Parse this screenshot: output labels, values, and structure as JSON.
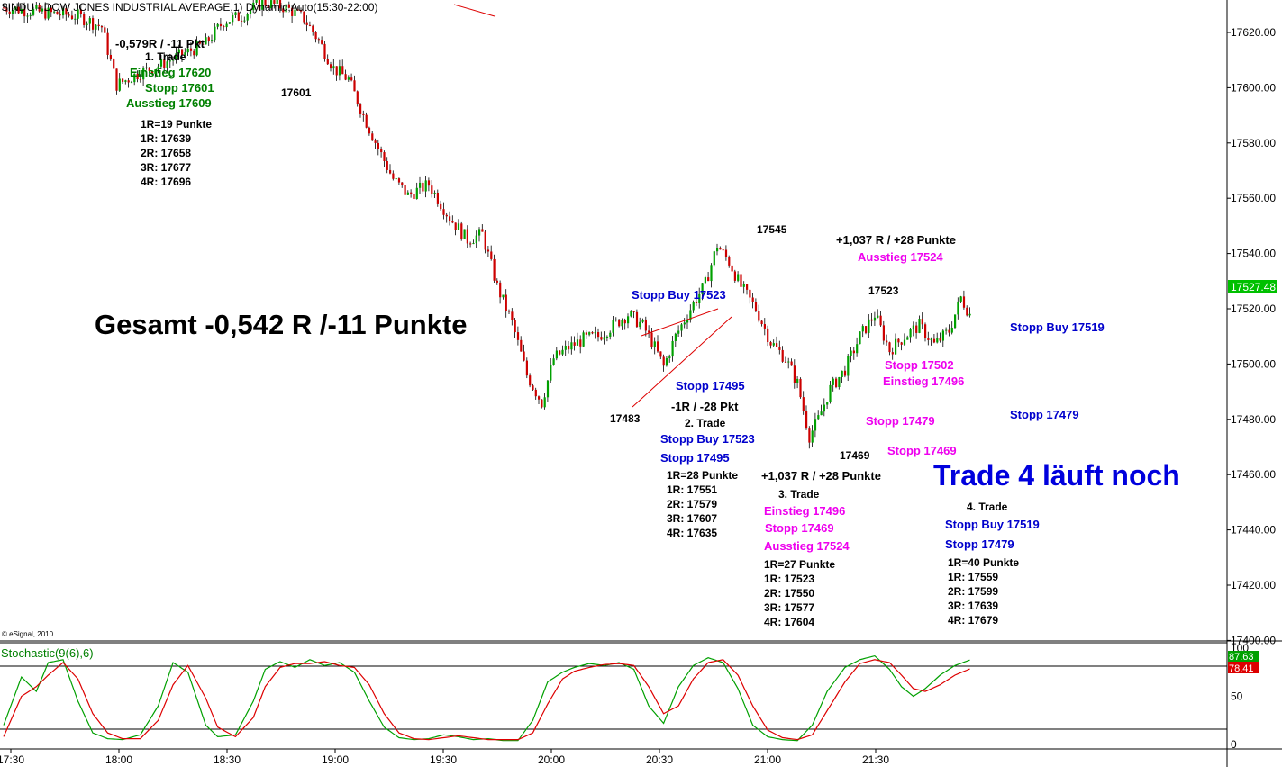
{
  "title": "$INDU - DOW JONES INDUSTRIAL AVERAGE,1) Dynamic,Auto(15:30-22:00)",
  "copyright": "© eSignal, 2010",
  "stochastic_label": "Stochastic(9(6),6)",
  "colors": {
    "up_candle": "#00a000",
    "down_candle": "#cc0000",
    "stoch_k": "#00a000",
    "stoch_d": "#dd0000",
    "last_price_bg": "#00c000",
    "trendline": "#dd0000"
  },
  "chart_data": {
    "type": "candlestick",
    "price_axis": {
      "ticks": [
        "17620.00",
        "17600.00",
        "17580.00",
        "17560.00",
        "17540.00",
        "17520.00",
        "17500.00",
        "17480.00",
        "17460.00",
        "17440.00",
        "17420.00",
        "17400.00"
      ],
      "tick_values": [
        17620,
        17600,
        17580,
        17560,
        17540,
        17520,
        17500,
        17480,
        17460,
        17440,
        17420,
        17400
      ],
      "last_price": "17527.48"
    },
    "time_axis": {
      "labels": [
        "17:30",
        "18:00",
        "18:30",
        "19:00",
        "19:30",
        "20:00",
        "20:30",
        "21:00",
        "21:30"
      ]
    },
    "stochastic_axis": {
      "ticks": [
        "100",
        "50",
        "0"
      ],
      "tick_values": [
        100,
        50,
        0
      ],
      "k_value": "87.63",
      "d_value": "78.41",
      "overbought": 80,
      "oversold": 20
    },
    "price_path": [
      [
        0,
        17629
      ],
      [
        15,
        17627
      ],
      [
        25,
        17626
      ],
      [
        33,
        17622
      ],
      [
        38,
        17601
      ],
      [
        45,
        17605
      ],
      [
        52,
        17608
      ],
      [
        60,
        17612
      ],
      [
        68,
        17616
      ],
      [
        74,
        17624
      ],
      [
        80,
        17626
      ],
      [
        87,
        17631
      ],
      [
        95,
        17629
      ],
      [
        101,
        17625
      ],
      [
        106,
        17617
      ],
      [
        111,
        17607
      ],
      [
        116,
        17603
      ],
      [
        121,
        17590
      ],
      [
        126,
        17578
      ],
      [
        131,
        17567
      ],
      [
        136,
        17561
      ],
      [
        143,
        17565
      ],
      [
        150,
        17553
      ],
      [
        156,
        17545
      ],
      [
        161,
        17547
      ],
      [
        166,
        17528
      ],
      [
        171,
        17515
      ],
      [
        176,
        17496
      ],
      [
        181,
        17486
      ],
      [
        185,
        17502
      ],
      [
        190,
        17506
      ],
      [
        195,
        17509
      ],
      [
        200,
        17510
      ],
      [
        205,
        17514
      ],
      [
        210,
        17518
      ],
      [
        215,
        17514
      ],
      [
        219,
        17506
      ],
      [
        222,
        17499
      ],
      [
        226,
        17510
      ],
      [
        231,
        17520
      ],
      [
        236,
        17529
      ],
      [
        240,
        17543
      ],
      [
        244,
        17537
      ],
      [
        248,
        17528
      ],
      [
        253,
        17520
      ],
      [
        258,
        17508
      ],
      [
        263,
        17502
      ],
      [
        267,
        17493
      ],
      [
        271,
        17474
      ],
      [
        274,
        17480
      ],
      [
        278,
        17491
      ],
      [
        283,
        17498
      ],
      [
        288,
        17510
      ],
      [
        293,
        17518
      ],
      [
        298,
        17505
      ],
      [
        303,
        17510
      ],
      [
        308,
        17514
      ],
      [
        313,
        17507
      ],
      [
        318,
        17512
      ],
      [
        322,
        17524
      ],
      [
        325,
        17518
      ]
    ],
    "stoch_k": [
      [
        0,
        20
      ],
      [
        6,
        70
      ],
      [
        11,
        55
      ],
      [
        15,
        85
      ],
      [
        20,
        88
      ],
      [
        25,
        45
      ],
      [
        30,
        12
      ],
      [
        35,
        6
      ],
      [
        40,
        5
      ],
      [
        46,
        10
      ],
      [
        52,
        40
      ],
      [
        57,
        85
      ],
      [
        62,
        75
      ],
      [
        68,
        20
      ],
      [
        72,
        8
      ],
      [
        78,
        10
      ],
      [
        84,
        45
      ],
      [
        88,
        78
      ],
      [
        93,
        86
      ],
      [
        98,
        80
      ],
      [
        103,
        88
      ],
      [
        108,
        82
      ],
      [
        113,
        85
      ],
      [
        118,
        75
      ],
      [
        123,
        45
      ],
      [
        128,
        18
      ],
      [
        133,
        7
      ],
      [
        138,
        5
      ],
      [
        143,
        6
      ],
      [
        148,
        10
      ],
      [
        153,
        8
      ],
      [
        158,
        5
      ],
      [
        163,
        6
      ],
      [
        168,
        4
      ],
      [
        173,
        4
      ],
      [
        178,
        25
      ],
      [
        183,
        65
      ],
      [
        188,
        75
      ],
      [
        192,
        80
      ],
      [
        197,
        84
      ],
      [
        202,
        82
      ],
      [
        207,
        85
      ],
      [
        212,
        78
      ],
      [
        217,
        40
      ],
      [
        222,
        22
      ],
      [
        227,
        60
      ],
      [
        232,
        82
      ],
      [
        237,
        90
      ],
      [
        242,
        85
      ],
      [
        247,
        58
      ],
      [
        252,
        20
      ],
      [
        257,
        8
      ],
      [
        262,
        5
      ],
      [
        267,
        4
      ],
      [
        272,
        20
      ],
      [
        277,
        55
      ],
      [
        283,
        80
      ],
      [
        288,
        88
      ],
      [
        293,
        92
      ],
      [
        298,
        78
      ],
      [
        302,
        60
      ],
      [
        306,
        50
      ],
      [
        310,
        58
      ],
      [
        315,
        72
      ],
      [
        320,
        82
      ],
      [
        325,
        87.63
      ]
    ],
    "stoch_d": [
      [
        0,
        8
      ],
      [
        6,
        50
      ],
      [
        11,
        60
      ],
      [
        15,
        72
      ],
      [
        20,
        85
      ],
      [
        25,
        68
      ],
      [
        30,
        32
      ],
      [
        35,
        12
      ],
      [
        40,
        6
      ],
      [
        46,
        6
      ],
      [
        52,
        25
      ],
      [
        57,
        62
      ],
      [
        62,
        82
      ],
      [
        68,
        48
      ],
      [
        72,
        18
      ],
      [
        78,
        8
      ],
      [
        84,
        28
      ],
      [
        88,
        60
      ],
      [
        93,
        80
      ],
      [
        98,
        84
      ],
      [
        103,
        84
      ],
      [
        108,
        86
      ],
      [
        113,
        82
      ],
      [
        118,
        80
      ],
      [
        123,
        62
      ],
      [
        128,
        32
      ],
      [
        133,
        12
      ],
      [
        138,
        6
      ],
      [
        143,
        5
      ],
      [
        148,
        7
      ],
      [
        153,
        9
      ],
      [
        158,
        7
      ],
      [
        163,
        5
      ],
      [
        168,
        5
      ],
      [
        173,
        5
      ],
      [
        178,
        12
      ],
      [
        183,
        42
      ],
      [
        188,
        68
      ],
      [
        192,
        76
      ],
      [
        197,
        80
      ],
      [
        202,
        83
      ],
      [
        207,
        84
      ],
      [
        212,
        82
      ],
      [
        217,
        60
      ],
      [
        222,
        32
      ],
      [
        227,
        40
      ],
      [
        232,
        68
      ],
      [
        237,
        85
      ],
      [
        242,
        88
      ],
      [
        247,
        72
      ],
      [
        252,
        40
      ],
      [
        257,
        15
      ],
      [
        262,
        7
      ],
      [
        267,
        5
      ],
      [
        272,
        10
      ],
      [
        277,
        35
      ],
      [
        283,
        65
      ],
      [
        288,
        84
      ],
      [
        293,
        88
      ],
      [
        298,
        85
      ],
      [
        302,
        72
      ],
      [
        306,
        58
      ],
      [
        310,
        55
      ],
      [
        315,
        62
      ],
      [
        320,
        72
      ],
      [
        325,
        78.41
      ]
    ]
  },
  "annotations": {
    "summary": "Gesamt -0,542 R /-11 Punkte",
    "trade4_running": "Trade 4 läuft noch",
    "trade1": {
      "result": "-0,579R / -11 Pkt",
      "label": "1. Trade",
      "entry": "Einstieg 17620",
      "stop": "Stopp 17601",
      "exit": "Ausstieg 17609",
      "r_size": "1R=19 Punkte",
      "r1": "1R: 17639",
      "r2": "2R: 17658",
      "r3": "3R: 17677",
      "r4": "4R: 17696"
    },
    "trade2": {
      "result": "-1R / -28 Pkt",
      "label": "2. Trade",
      "entry": "Stopp Buy 17523",
      "stop": "Stopp 17495",
      "r_size": "1R=28 Punkte",
      "r1": "1R: 17551",
      "r2": "2R: 17579",
      "r3": "3R: 17607",
      "r4": "4R: 17635"
    },
    "trade3": {
      "result": "+1,037 R / +28 Punkte",
      "label": "3. Trade",
      "entry": "Einstieg 17496",
      "stop": "Stopp 17469",
      "exit": "Ausstieg 17524",
      "r_size": "1R=27 Punkte",
      "r1": "1R: 17523",
      "r2": "2R: 17550",
      "r3": "3R: 17577",
      "r4": "4R: 17604"
    },
    "trade4": {
      "label": "4. Trade",
      "entry": "Stopp Buy 17519",
      "stop": "Stopp 17479",
      "r_size": "1R=40 Punkte",
      "r1": "1R: 17559",
      "r2": "2R: 17599",
      "r3": "3R: 17639",
      "r4": "4R: 17679"
    },
    "in_chart": {
      "low_17601": "17601",
      "stop_buy_17523": "Stopp Buy 17523",
      "stop_17495": "Stopp 17495",
      "low_17483": "17483",
      "high_17545": "17545",
      "result_top": "+1,037 R / +28 Punkte",
      "exit_top": "Ausstieg 17524",
      "high_17523": "17523",
      "stop_17502": "Stopp 17502",
      "entry_17496": "Einstieg 17496",
      "stop_17479_mag": "Stopp 17479",
      "low_17469": "17469",
      "stop_17469_mag": "Stopp 17469",
      "stop_buy_17519": "Stopp Buy 17519",
      "stop_17479_blue": "Stopp 17479"
    }
  }
}
